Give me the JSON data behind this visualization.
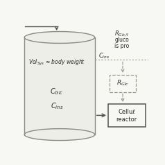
{
  "bg_color": "#f7f7f4",
  "label_vol": "Vol$_{\\mathregular{Sys}}$ ≈ body weight",
  "label_cglc": "$C_{\\mathregular{Glc}}$",
  "label_cins_tank": "$C_{\\mathregular{ins}}$",
  "label_cins_side": "$C_{\\mathregular{Ins}}$",
  "label_rglc": "$R_{\\mathregular{Glc}}$",
  "label_rglcins": "$R_{\\mathregular{Glc/I}}$",
  "label_gluco": "gluco",
  "label_ispro": "is pro",
  "label_cellu": "Celluℓ",
  "label_reacto": "reactor",
  "line_color": "#8a8a85",
  "text_color": "#2a2a28",
  "dashed_color": "#999990",
  "box_color": "#555550",
  "fill_color": "#eeeee8",
  "arrow_color": "#555550"
}
